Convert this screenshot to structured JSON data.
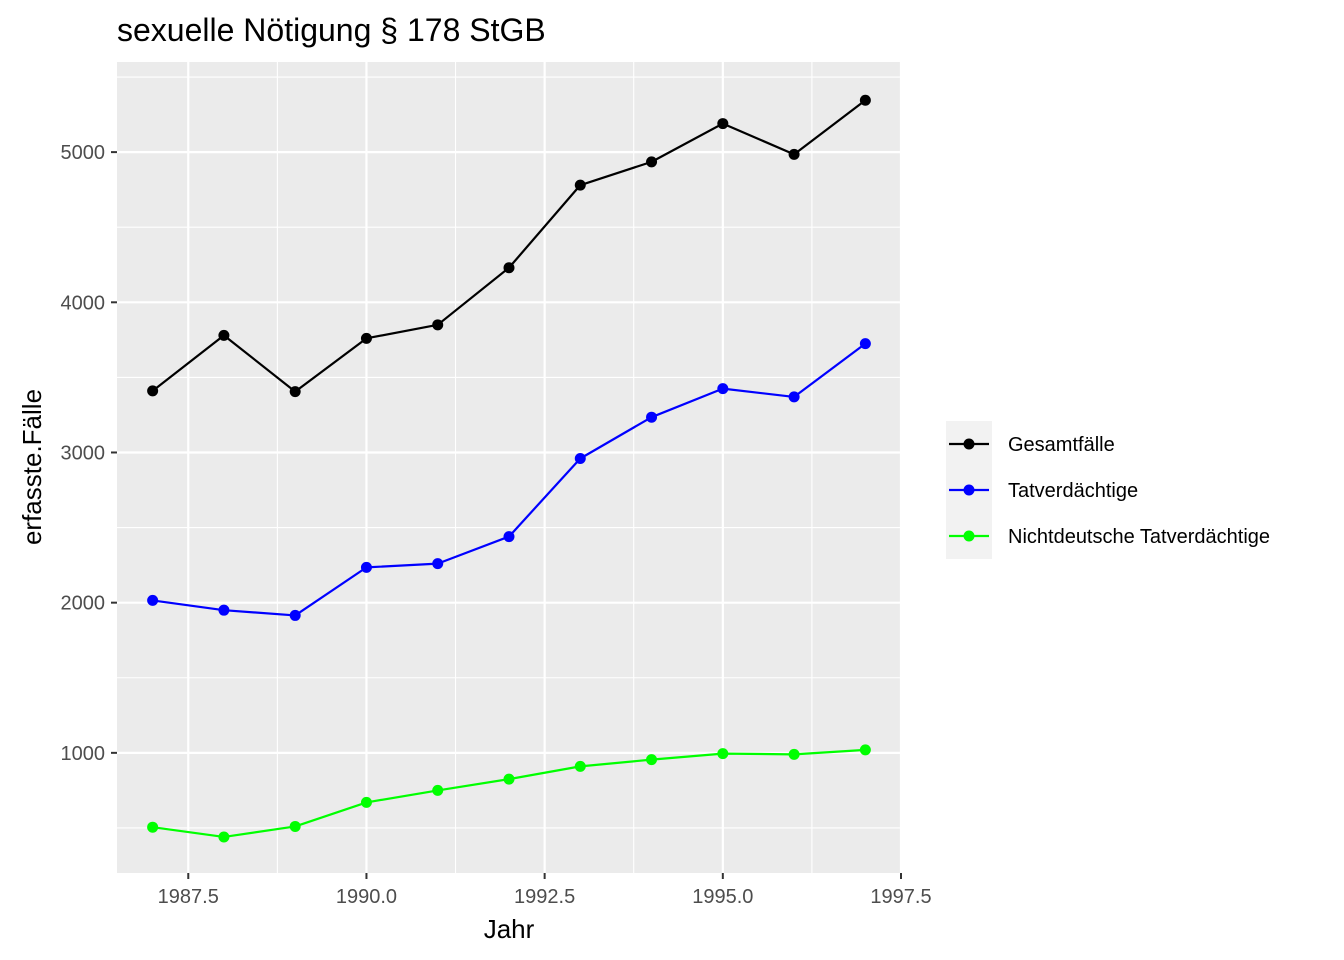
{
  "chart_data": {
    "type": "line",
    "title": "sexuelle Nötigung § 178 StGB",
    "xlabel": "Jahr",
    "ylabel": "erfasste.Fälle",
    "xlim": [
      1986.5,
      1997.5
    ],
    "ylim": [
      200,
      5600
    ],
    "x_ticks": [
      1987.5,
      1990.0,
      1992.5,
      1995.0,
      1997.5
    ],
    "x_tick_labels": [
      "1987.5",
      "1990.0",
      "1992.5",
      "1995.0",
      "1997.5"
    ],
    "y_ticks": [
      1000,
      2000,
      3000,
      4000,
      5000
    ],
    "y_tick_labels": [
      "1000",
      "2000",
      "3000",
      "4000",
      "5000"
    ],
    "grid": true,
    "legend_position": "right",
    "x": [
      1987,
      1988,
      1989,
      1990,
      1991,
      1992,
      1993,
      1994,
      1995,
      1996,
      1997
    ],
    "series": [
      {
        "name": "Gesamtfälle",
        "color": "#000000",
        "values": [
          3410,
          3780,
          3405,
          3760,
          3850,
          4230,
          4780,
          4935,
          5190,
          4985,
          5345
        ]
      },
      {
        "name": "Tatverdächtige",
        "color": "#0000ff",
        "values": [
          2015,
          1950,
          1915,
          2235,
          2260,
          2440,
          2960,
          3235,
          3425,
          3370,
          3725
        ]
      },
      {
        "name": "Nichtdeutsche Tatverdächtige",
        "color": "#00ff00",
        "values": [
          505,
          440,
          510,
          670,
          750,
          825,
          910,
          955,
          995,
          990,
          1020
        ]
      }
    ]
  }
}
